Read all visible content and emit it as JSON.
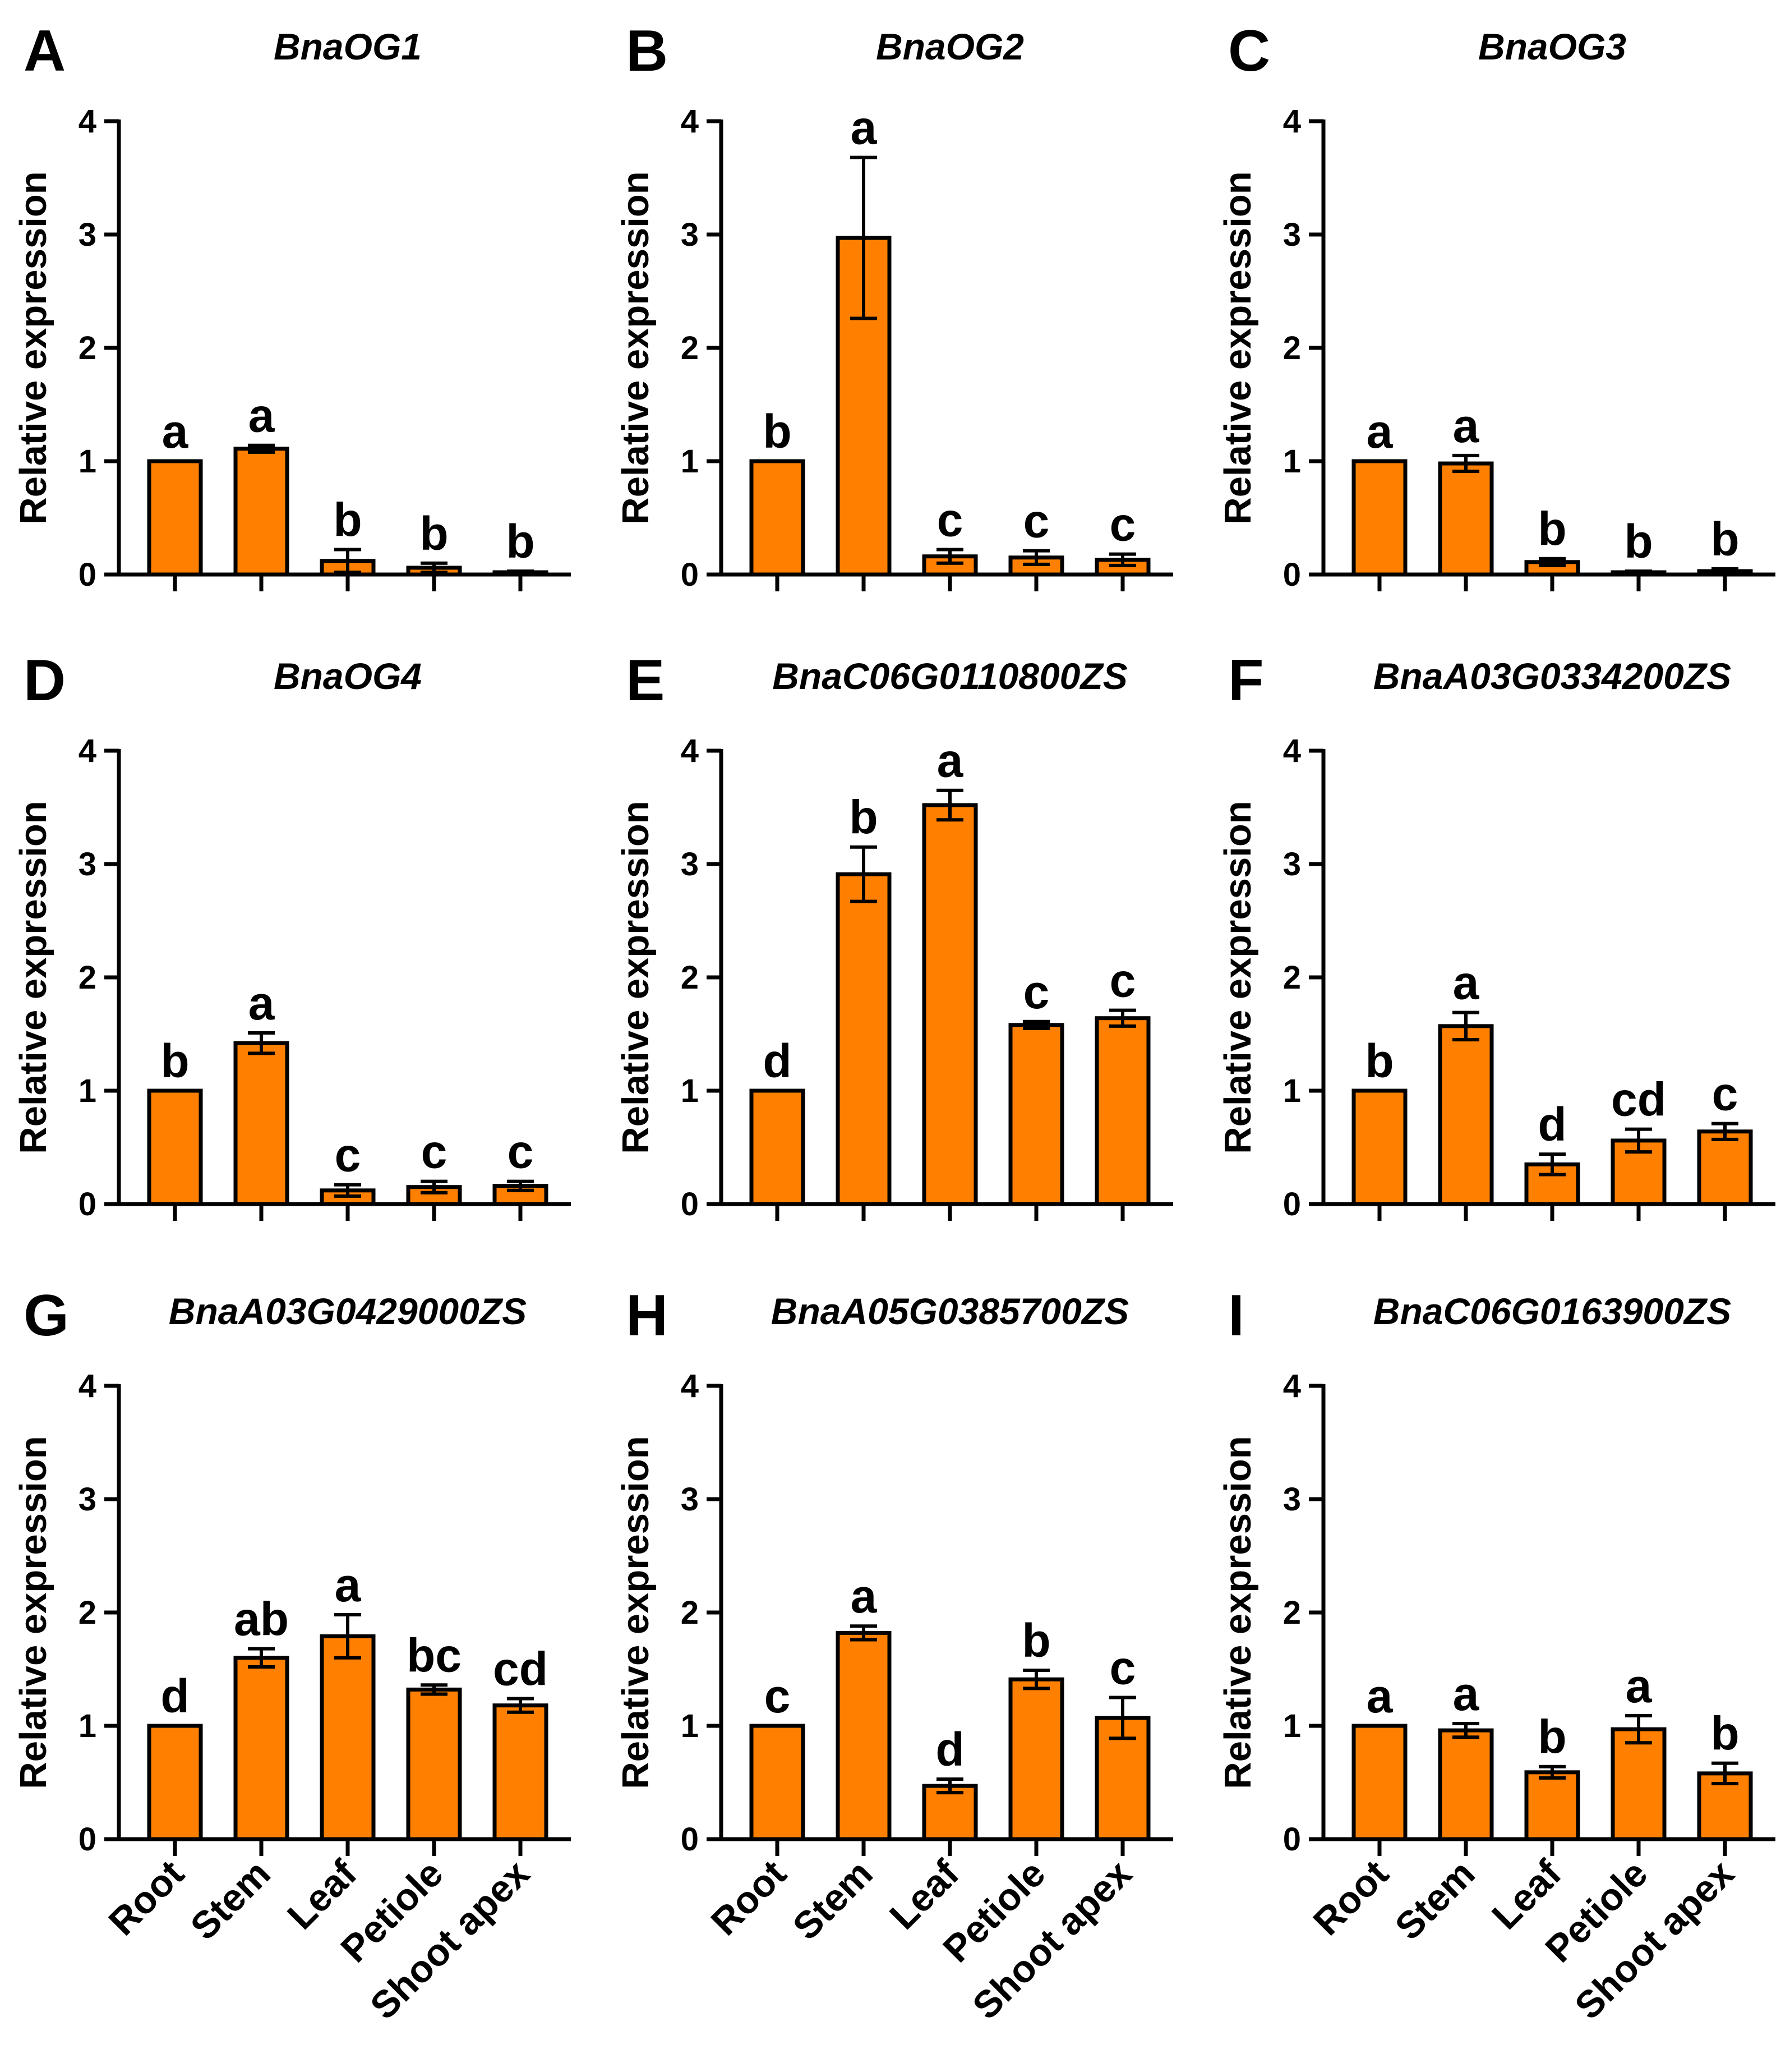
{
  "figure": {
    "colors": {
      "bar_fill": "#FF8000",
      "bar_stroke": "#000000",
      "axis": "#000000"
    }
  },
  "chart_data": [
    {
      "type": "bar",
      "panel": "A",
      "title": "BnaOG1",
      "ylabel": "Relative expression",
      "xlabel": "",
      "ylim": [
        0,
        4
      ],
      "yticks": [
        "0",
        "1",
        "2",
        "3",
        "4"
      ],
      "categories": [
        "Root",
        "Stem",
        "Leaf",
        "Petiole",
        "Shoot apex"
      ],
      "show_category_labels": false,
      "values": [
        1.0,
        1.11,
        0.12,
        0.06,
        0.02
      ],
      "errors": [
        0,
        0.03,
        0.1,
        0.04,
        0.01
      ],
      "significance": [
        "a",
        "a",
        "b",
        "b",
        "b"
      ]
    },
    {
      "type": "bar",
      "panel": "B",
      "title": "BnaOG2",
      "ylabel": "Relative expression",
      "xlabel": "",
      "ylim": [
        0,
        4
      ],
      "yticks": [
        "0",
        "1",
        "2",
        "3",
        "4"
      ],
      "categories": [
        "Root",
        "Stem",
        "Leaf",
        "Petiole",
        "Shoot apex"
      ],
      "show_category_labels": false,
      "values": [
        1.0,
        2.97,
        0.16,
        0.15,
        0.13
      ],
      "errors": [
        0,
        0.71,
        0.06,
        0.06,
        0.05
      ],
      "significance": [
        "b",
        "a",
        "c",
        "c",
        "c"
      ]
    },
    {
      "type": "bar",
      "panel": "C",
      "title": "BnaOG3",
      "ylabel": "Relative expression",
      "xlabel": "",
      "ylim": [
        0,
        4
      ],
      "yticks": [
        "0",
        "1",
        "2",
        "3",
        "4"
      ],
      "categories": [
        "Root",
        "Stem",
        "Leaf",
        "Petiole",
        "Shoot apex"
      ],
      "show_category_labels": false,
      "values": [
        1.0,
        0.98,
        0.11,
        0.02,
        0.03
      ],
      "errors": [
        0,
        0.07,
        0.03,
        0.01,
        0.02
      ],
      "significance": [
        "a",
        "a",
        "b",
        "b",
        "b"
      ]
    },
    {
      "type": "bar",
      "panel": "D",
      "title": "BnaOG4",
      "ylabel": "Relative expression",
      "xlabel": "",
      "ylim": [
        0,
        4
      ],
      "yticks": [
        "0",
        "1",
        "2",
        "3",
        "4"
      ],
      "categories": [
        "Root",
        "Stem",
        "Leaf",
        "Petiole",
        "Shoot apex"
      ],
      "show_category_labels": false,
      "values": [
        1.0,
        1.42,
        0.12,
        0.15,
        0.16
      ],
      "errors": [
        0,
        0.09,
        0.05,
        0.05,
        0.04
      ],
      "significance": [
        "b",
        "a",
        "c",
        "c",
        "c"
      ]
    },
    {
      "type": "bar",
      "panel": "E",
      "title": "BnaC06G0110800ZS",
      "ylabel": "Relative expression",
      "xlabel": "",
      "ylim": [
        0,
        4
      ],
      "yticks": [
        "0",
        "1",
        "2",
        "3",
        "4"
      ],
      "categories": [
        "Root",
        "Stem",
        "Leaf",
        "Petiole",
        "Shoot apex"
      ],
      "show_category_labels": false,
      "values": [
        1.0,
        2.91,
        3.52,
        1.58,
        1.64
      ],
      "errors": [
        0,
        0.24,
        0.13,
        0.03,
        0.07
      ],
      "significance": [
        "d",
        "b",
        "a",
        "c",
        "c"
      ]
    },
    {
      "type": "bar",
      "panel": "F",
      "title": "BnaA03G0334200ZS",
      "ylabel": "Relative expression",
      "xlabel": "",
      "ylim": [
        0,
        4
      ],
      "yticks": [
        "0",
        "1",
        "2",
        "3",
        "4"
      ],
      "categories": [
        "Root",
        "Stem",
        "Leaf",
        "Petiole",
        "Shoot apex"
      ],
      "show_category_labels": false,
      "values": [
        1.0,
        1.57,
        0.35,
        0.56,
        0.64
      ],
      "errors": [
        0,
        0.12,
        0.09,
        0.1,
        0.07
      ],
      "significance": [
        "b",
        "a",
        "d",
        "cd",
        "c"
      ]
    },
    {
      "type": "bar",
      "panel": "G",
      "title": "BnaA03G0429000ZS",
      "ylabel": "Relative expression",
      "xlabel": "",
      "ylim": [
        0,
        4
      ],
      "yticks": [
        "0",
        "1",
        "2",
        "3",
        "4"
      ],
      "categories": [
        "Root",
        "Stem",
        "Leaf",
        "Petiole",
        "Shoot apex"
      ],
      "show_category_labels": true,
      "values": [
        1.0,
        1.6,
        1.79,
        1.32,
        1.18
      ],
      "errors": [
        0,
        0.08,
        0.19,
        0.04,
        0.06
      ],
      "significance": [
        "d",
        "ab",
        "a",
        "bc",
        "cd"
      ]
    },
    {
      "type": "bar",
      "panel": "H",
      "title": "BnaA05G0385700ZS",
      "ylabel": "Relative expression",
      "xlabel": "",
      "ylim": [
        0,
        4
      ],
      "yticks": [
        "0",
        "1",
        "2",
        "3",
        "4"
      ],
      "categories": [
        "Root",
        "Stem",
        "Leaf",
        "Petiole",
        "Shoot apex"
      ],
      "show_category_labels": true,
      "values": [
        1.0,
        1.82,
        0.47,
        1.41,
        1.07
      ],
      "errors": [
        0,
        0.06,
        0.06,
        0.08,
        0.18
      ],
      "significance": [
        "c",
        "a",
        "d",
        "b",
        "c"
      ]
    },
    {
      "type": "bar",
      "panel": "I",
      "title": "BnaC06G0163900ZS",
      "ylabel": "Relative expression",
      "xlabel": "",
      "ylim": [
        0,
        4
      ],
      "yticks": [
        "0",
        "1",
        "2",
        "3",
        "4"
      ],
      "categories": [
        "Root",
        "Stem",
        "Leaf",
        "Petiole",
        "Shoot apex"
      ],
      "show_category_labels": true,
      "values": [
        1.0,
        0.96,
        0.59,
        0.97,
        0.58
      ],
      "errors": [
        0,
        0.06,
        0.05,
        0.12,
        0.09
      ],
      "significance": [
        "a",
        "a",
        "b",
        "a",
        "b"
      ]
    }
  ]
}
